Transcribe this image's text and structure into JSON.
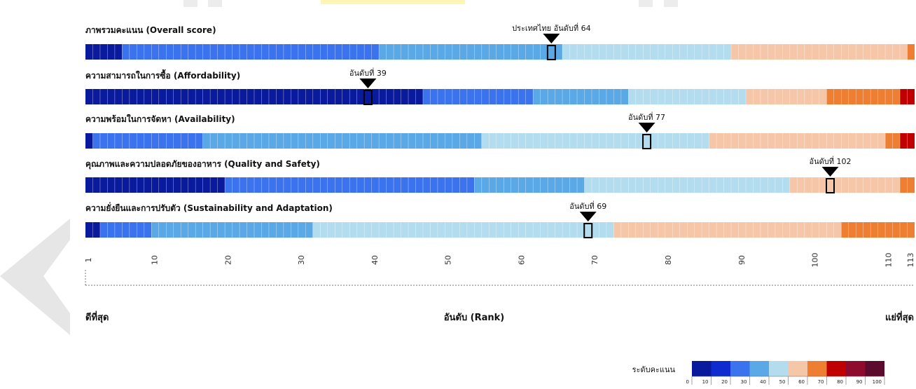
{
  "chart_data": {
    "type": "heatmap",
    "x_range": [
      1,
      113
    ],
    "x_ticks": [
      1,
      10,
      20,
      30,
      40,
      50,
      60,
      70,
      80,
      90,
      100,
      110,
      113
    ],
    "x_tick_labels": [
      "1",
      "10",
      "20",
      "30",
      "40",
      "50",
      "60",
      "70",
      "80",
      "90",
      "100",
      "110",
      "113"
    ],
    "xlabel": "อันดับ (Rank)",
    "best_label": "ดีที่สุด",
    "worst_label": "แย่ที่สุด",
    "rows": [
      {
        "title": "ภาพรวมคะแนน (Overall score)",
        "marker_label": "ประเทศไทย อันดับที่ 64",
        "marker_rank": 64,
        "segments": [
          {
            "from_rank": 1,
            "to_rank": 5,
            "color": "#0a1a9c"
          },
          {
            "from_rank": 6,
            "to_rank": 40,
            "color": "#3b73ee"
          },
          {
            "from_rank": 41,
            "to_rank": 65,
            "color": "#5aa9e6"
          },
          {
            "from_rank": 66,
            "to_rank": 88,
            "color": "#b3dcef"
          },
          {
            "from_rank": 89,
            "to_rank": 112,
            "color": "#f6c6a8"
          },
          {
            "from_rank": 113,
            "to_rank": 113,
            "color": "#ee7e32"
          }
        ]
      },
      {
        "title": "ความสามารถในการซื้อ (Affordability)",
        "marker_label": "อันดับที่ 39",
        "marker_rank": 39,
        "segments": [
          {
            "from_rank": 1,
            "to_rank": 46,
            "color": "#0a1a9c"
          },
          {
            "from_rank": 47,
            "to_rank": 61,
            "color": "#3b73ee"
          },
          {
            "from_rank": 62,
            "to_rank": 74,
            "color": "#5aa9e6"
          },
          {
            "from_rank": 75,
            "to_rank": 90,
            "color": "#b3dcef"
          },
          {
            "from_rank": 91,
            "to_rank": 101,
            "color": "#f6c6a8"
          },
          {
            "from_rank": 102,
            "to_rank": 111,
            "color": "#ee7e32"
          },
          {
            "from_rank": 112,
            "to_rank": 113,
            "color": "#c00000"
          }
        ]
      },
      {
        "title": "ความพร้อมในการจัดหา (Availability)",
        "marker_label": "อันดับที่ 77",
        "marker_rank": 77,
        "segments": [
          {
            "from_rank": 1,
            "to_rank": 1,
            "color": "#0a1a9c"
          },
          {
            "from_rank": 2,
            "to_rank": 16,
            "color": "#3b73ee"
          },
          {
            "from_rank": 17,
            "to_rank": 54,
            "color": "#5aa9e6"
          },
          {
            "from_rank": 55,
            "to_rank": 85,
            "color": "#b3dcef"
          },
          {
            "from_rank": 86,
            "to_rank": 109,
            "color": "#f6c6a8"
          },
          {
            "from_rank": 110,
            "to_rank": 111,
            "color": "#ee7e32"
          },
          {
            "from_rank": 112,
            "to_rank": 113,
            "color": "#c00000"
          }
        ]
      },
      {
        "title": "คุณภาพและความปลอดภัยของอาหาร (Quality and Safety)",
        "marker_label": "อันดับที่ 102",
        "marker_rank": 102,
        "segments": [
          {
            "from_rank": 1,
            "to_rank": 19,
            "color": "#0a1a9c"
          },
          {
            "from_rank": 20,
            "to_rank": 53,
            "color": "#3b73ee"
          },
          {
            "from_rank": 54,
            "to_rank": 68,
            "color": "#5aa9e6"
          },
          {
            "from_rank": 69,
            "to_rank": 96,
            "color": "#b3dcef"
          },
          {
            "from_rank": 97,
            "to_rank": 111,
            "color": "#f6c6a8"
          },
          {
            "from_rank": 112,
            "to_rank": 113,
            "color": "#ee7e32"
          }
        ]
      },
      {
        "title": "ความยั่งยืนและการปรับตัว (Sustainability and Adaptation)",
        "marker_label": "อันดับที่ 69",
        "marker_rank": 69,
        "segments": [
          {
            "from_rank": 1,
            "to_rank": 2,
            "color": "#0a1a9c"
          },
          {
            "from_rank": 3,
            "to_rank": 9,
            "color": "#3b73ee"
          },
          {
            "from_rank": 10,
            "to_rank": 31,
            "color": "#5aa9e6"
          },
          {
            "from_rank": 32,
            "to_rank": 72,
            "color": "#b3dcef"
          },
          {
            "from_rank": 73,
            "to_rank": 103,
            "color": "#f6c6a8"
          },
          {
            "from_rank": 104,
            "to_rank": 113,
            "color": "#ee7e32"
          }
        ]
      }
    ],
    "legend": {
      "title": "ระดับคะแนน",
      "ticks": [
        "0",
        "10",
        "20",
        "30",
        "40",
        "50",
        "60",
        "70",
        "80",
        "90",
        "100"
      ],
      "colors": [
        "#0a1a9c",
        "#0f2bd0",
        "#3b73ee",
        "#5aa9e6",
        "#b3dcef",
        "#f6c6a8",
        "#ee7e32",
        "#c00000",
        "#8e0a2e",
        "#5c0a2e"
      ]
    }
  }
}
